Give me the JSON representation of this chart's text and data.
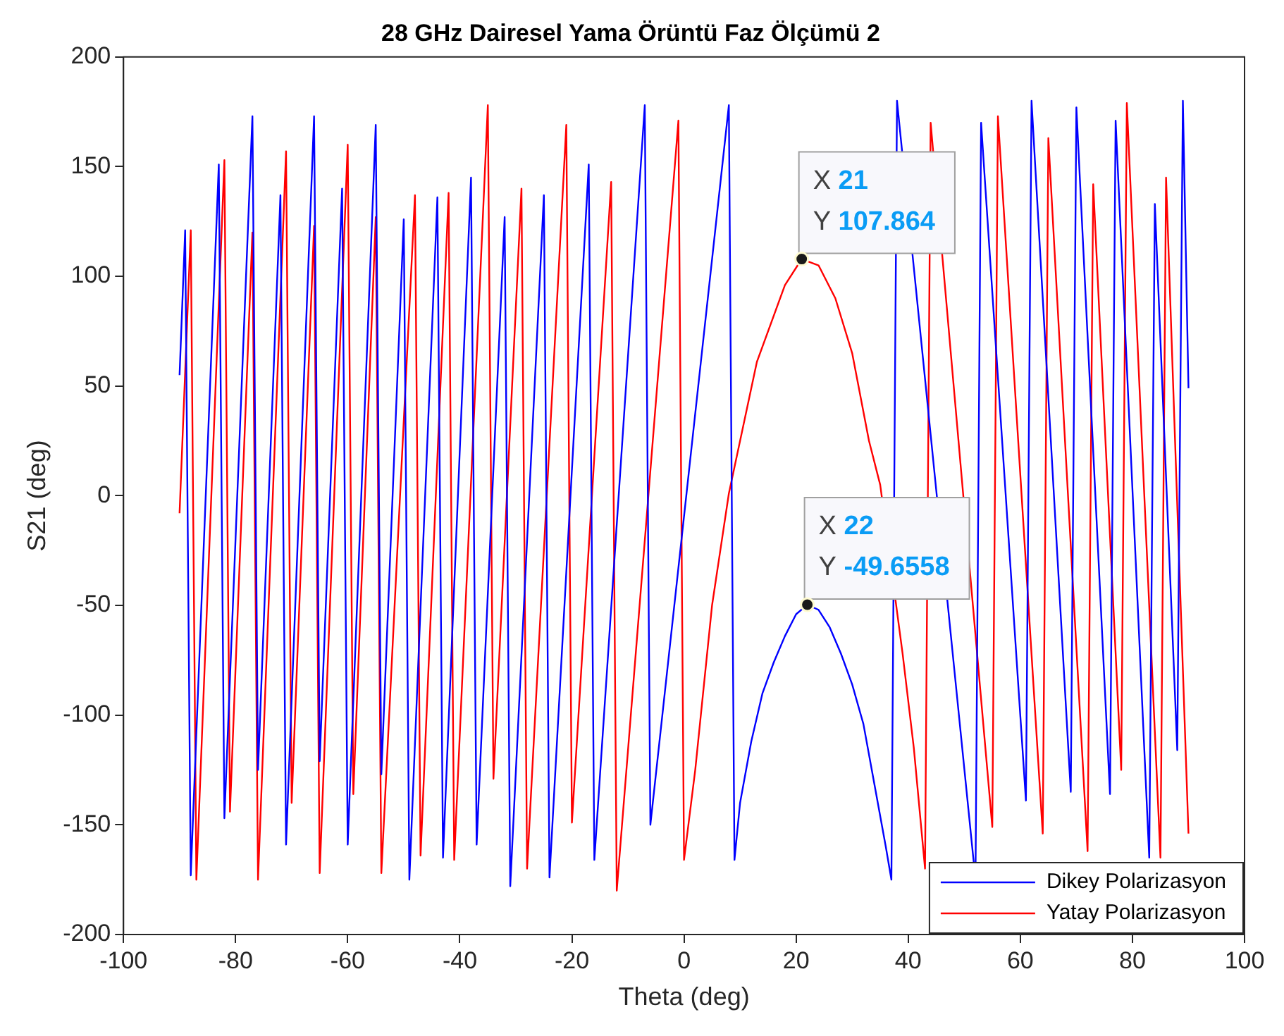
{
  "chart_data": {
    "type": "line",
    "title": "28 GHz Dairesel Yama Örüntü Faz Ölçümü 2",
    "xlabel": "Theta (deg)",
    "ylabel": "S21 (deg)",
    "xlim": [
      -100,
      100
    ],
    "xticks": [
      -100,
      -80,
      -60,
      -40,
      -20,
      0,
      20,
      40,
      60,
      80,
      100
    ],
    "ylim": [
      -200,
      200
    ],
    "yticks": [
      -200,
      -150,
      -100,
      -50,
      0,
      50,
      100,
      150,
      200
    ],
    "grid": false,
    "legend": "bottom right",
    "marker": "none",
    "line_style": "solid",
    "series": [
      {
        "name": "Dikey Polarizasyon",
        "color": "#0000ff",
        "x": [
          -90,
          -89,
          -88,
          -83,
          -82,
          -77,
          -76,
          -72,
          -71,
          -66,
          -65,
          -61,
          -60,
          -55,
          -54,
          -50,
          -49,
          -44,
          -43,
          -38,
          -37,
          -32,
          -31,
          -25,
          -24,
          -17,
          -16,
          -7,
          -6,
          8,
          9,
          10,
          12,
          14,
          16,
          18,
          20,
          22,
          24,
          26,
          28,
          30,
          32,
          34,
          36,
          37,
          38,
          52,
          53,
          61,
          62,
          69,
          70,
          76,
          77,
          83,
          84,
          88,
          89,
          90
        ],
        "values": [
          55,
          121,
          -173,
          151,
          -147,
          173,
          -125,
          137,
          -159,
          173,
          -121,
          140,
          -159,
          169,
          -127,
          126,
          -175,
          136,
          -165,
          145,
          -159,
          127,
          -178,
          137,
          -174,
          151,
          -166,
          178,
          -150,
          178,
          -166,
          -140,
          -112,
          -90,
          -76,
          -64,
          -54,
          -49.7,
          -52,
          -60,
          -72,
          -86,
          -104,
          -132,
          -160,
          -175,
          180,
          -175,
          170,
          -139,
          180,
          -135,
          177,
          -136,
          171,
          -165,
          133,
          -116,
          180,
          49
        ]
      },
      {
        "name": "Yatay Polarizasyon",
        "color": "#ff0000",
        "x": [
          -90,
          -88,
          -87,
          -82,
          -81,
          -77,
          -76,
          -71,
          -70,
          -66,
          -65,
          -60,
          -59,
          -55,
          -54,
          -48,
          -47,
          -42,
          -41,
          -35,
          -34,
          -29,
          -28,
          -21,
          -20,
          -13,
          -12,
          -1,
          0,
          2,
          5,
          8,
          13,
          18,
          21,
          24,
          27,
          30,
          33,
          35,
          39,
          41,
          43,
          44,
          55,
          56,
          64,
          65,
          72,
          73,
          78,
          79,
          85,
          86,
          90
        ],
        "values": [
          -8,
          121,
          -175,
          153,
          -144,
          120,
          -175,
          157,
          -140,
          123,
          -172,
          160,
          -136,
          127,
          -172,
          137,
          -164,
          138,
          -166,
          178,
          -129,
          140,
          -170,
          169,
          -149,
          143,
          -180,
          171,
          -166,
          -125,
          -50,
          1,
          61,
          96,
          107.9,
          105,
          90,
          65,
          25,
          5,
          -72,
          -115,
          -170,
          170,
          -151,
          173,
          -154,
          163,
          -162,
          142,
          -125,
          179,
          -165,
          145,
          -154
        ]
      }
    ],
    "annotations": [
      {
        "text": "X 21\nY 107.864",
        "x": 21,
        "y": 107.864
      },
      {
        "text": "X 22\nY -49.6558",
        "x": 22,
        "y": -49.6558
      }
    ]
  }
}
